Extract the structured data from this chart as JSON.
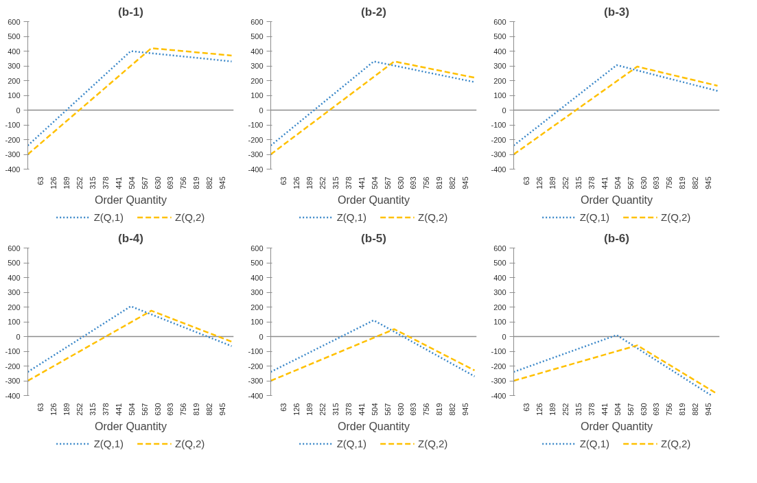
{
  "chart_data": [
    {
      "type": "line",
      "title": "(b-1)",
      "ref_lines": [
        {
          "axis": "y",
          "value": 0
        }
      ],
      "xlabel": "Order Quantity",
      "xlim": [
        0,
        1000
      ],
      "xticks": [
        63,
        126,
        189,
        252,
        315,
        378,
        441,
        504,
        567,
        630,
        693,
        756,
        819,
        882,
        945
      ],
      "ylim": [
        -400,
        600
      ],
      "yticks": [
        -400,
        -300,
        -200,
        -100,
        0,
        100,
        200,
        300,
        400,
        500,
        600
      ],
      "legend": "bottom",
      "series": [
        {
          "name": "Z(Q,1)",
          "color": "#3a87c8",
          "line_style": "dotted",
          "x": [
            0,
            500,
            990
          ],
          "values": [
            -240,
            400,
            330
          ]
        },
        {
          "name": "Z(Q,2)",
          "color": "#ffc000",
          "line_style": "dashed",
          "x": [
            0,
            600,
            990
          ],
          "values": [
            -300,
            420,
            370
          ]
        }
      ]
    },
    {
      "type": "line",
      "title": "(b-2)",
      "ref_lines": [
        {
          "axis": "y",
          "value": 0
        }
      ],
      "xlabel": "Order Quantity",
      "xlim": [
        0,
        1000
      ],
      "xticks": [
        63,
        126,
        189,
        252,
        315,
        378,
        441,
        504,
        567,
        630,
        693,
        756,
        819,
        882,
        945
      ],
      "ylim": [
        -400,
        600
      ],
      "yticks": [
        -400,
        -300,
        -200,
        -100,
        0,
        100,
        200,
        300,
        400,
        500,
        600
      ],
      "legend": "bottom",
      "series": [
        {
          "name": "Z(Q,1)",
          "color": "#3a87c8",
          "line_style": "dotted",
          "x": [
            0,
            500,
            990
          ],
          "values": [
            -240,
            330,
            190
          ]
        },
        {
          "name": "Z(Q,2)",
          "color": "#ffc000",
          "line_style": "dashed",
          "x": [
            0,
            600,
            990
          ],
          "values": [
            -300,
            330,
            220
          ]
        }
      ]
    },
    {
      "type": "line",
      "title": "(b-3)",
      "ref_lines": [
        {
          "axis": "y",
          "value": 0
        }
      ],
      "xlabel": "Order Quantity",
      "xlim": [
        0,
        1000
      ],
      "xticks": [
        63,
        126,
        189,
        252,
        315,
        378,
        441,
        504,
        567,
        630,
        693,
        756,
        819,
        882,
        945
      ],
      "ylim": [
        -400,
        600
      ],
      "yticks": [
        -400,
        -300,
        -200,
        -100,
        0,
        100,
        200,
        300,
        400,
        500,
        600
      ],
      "legend": "bottom",
      "series": [
        {
          "name": "Z(Q,1)",
          "color": "#3a87c8",
          "line_style": "dotted",
          "x": [
            0,
            500,
            990
          ],
          "values": [
            -240,
            305,
            130
          ]
        },
        {
          "name": "Z(Q,2)",
          "color": "#ffc000",
          "line_style": "dashed",
          "x": [
            0,
            600,
            990
          ],
          "values": [
            -300,
            295,
            165
          ]
        }
      ]
    },
    {
      "type": "line",
      "title": "(b-4)",
      "ref_lines": [
        {
          "axis": "y",
          "value": 0
        }
      ],
      "xlabel": "Order Quantity",
      "xlim": [
        0,
        1000
      ],
      "xticks": [
        63,
        126,
        189,
        252,
        315,
        378,
        441,
        504,
        567,
        630,
        693,
        756,
        819,
        882,
        945
      ],
      "ylim": [
        -400,
        600
      ],
      "yticks": [
        -400,
        -300,
        -200,
        -100,
        0,
        100,
        200,
        300,
        400,
        500,
        600
      ],
      "legend": "bottom",
      "series": [
        {
          "name": "Z(Q,1)",
          "color": "#3a87c8",
          "line_style": "dotted",
          "x": [
            0,
            500,
            990
          ],
          "values": [
            -240,
            205,
            -65
          ]
        },
        {
          "name": "Z(Q,2)",
          "color": "#ffc000",
          "line_style": "dashed",
          "x": [
            0,
            600,
            990
          ],
          "values": [
            -300,
            175,
            -35
          ]
        }
      ]
    },
    {
      "type": "line",
      "title": "(b-5)",
      "ref_lines": [
        {
          "axis": "y",
          "value": 0
        }
      ],
      "xlabel": "Order Quantity",
      "xlim": [
        0,
        1000
      ],
      "xticks": [
        63,
        126,
        189,
        252,
        315,
        378,
        441,
        504,
        567,
        630,
        693,
        756,
        819,
        882,
        945
      ],
      "ylim": [
        -400,
        600
      ],
      "yticks": [
        -400,
        -300,
        -200,
        -100,
        0,
        100,
        200,
        300,
        400,
        500,
        600
      ],
      "legend": "bottom",
      "series": [
        {
          "name": "Z(Q,1)",
          "color": "#3a87c8",
          "line_style": "dotted",
          "x": [
            0,
            500,
            990
          ],
          "values": [
            -240,
            110,
            -270
          ]
        },
        {
          "name": "Z(Q,2)",
          "color": "#ffc000",
          "line_style": "dashed",
          "x": [
            0,
            600,
            990
          ],
          "values": [
            -300,
            50,
            -230
          ]
        }
      ]
    },
    {
      "type": "line",
      "title": "(b-6)",
      "ref_lines": [
        {
          "axis": "y",
          "value": 0
        }
      ],
      "xlabel": "Order Quantity",
      "xlim": [
        0,
        1000
      ],
      "xticks": [
        63,
        126,
        189,
        252,
        315,
        378,
        441,
        504,
        567,
        630,
        693,
        756,
        819,
        882,
        945
      ],
      "ylim": [
        -400,
        600
      ],
      "yticks": [
        -400,
        -300,
        -200,
        -100,
        0,
        100,
        200,
        300,
        400,
        500,
        600
      ],
      "legend": "bottom",
      "series": [
        {
          "name": "Z(Q,1)",
          "color": "#3a87c8",
          "line_style": "dotted",
          "x": [
            0,
            500,
            960
          ],
          "values": [
            -240,
            10,
            -400
          ]
        },
        {
          "name": "Z(Q,2)",
          "color": "#ffc000",
          "line_style": "dashed",
          "x": [
            0,
            600,
            990
          ],
          "values": [
            -300,
            -60,
            -390
          ]
        }
      ]
    }
  ]
}
